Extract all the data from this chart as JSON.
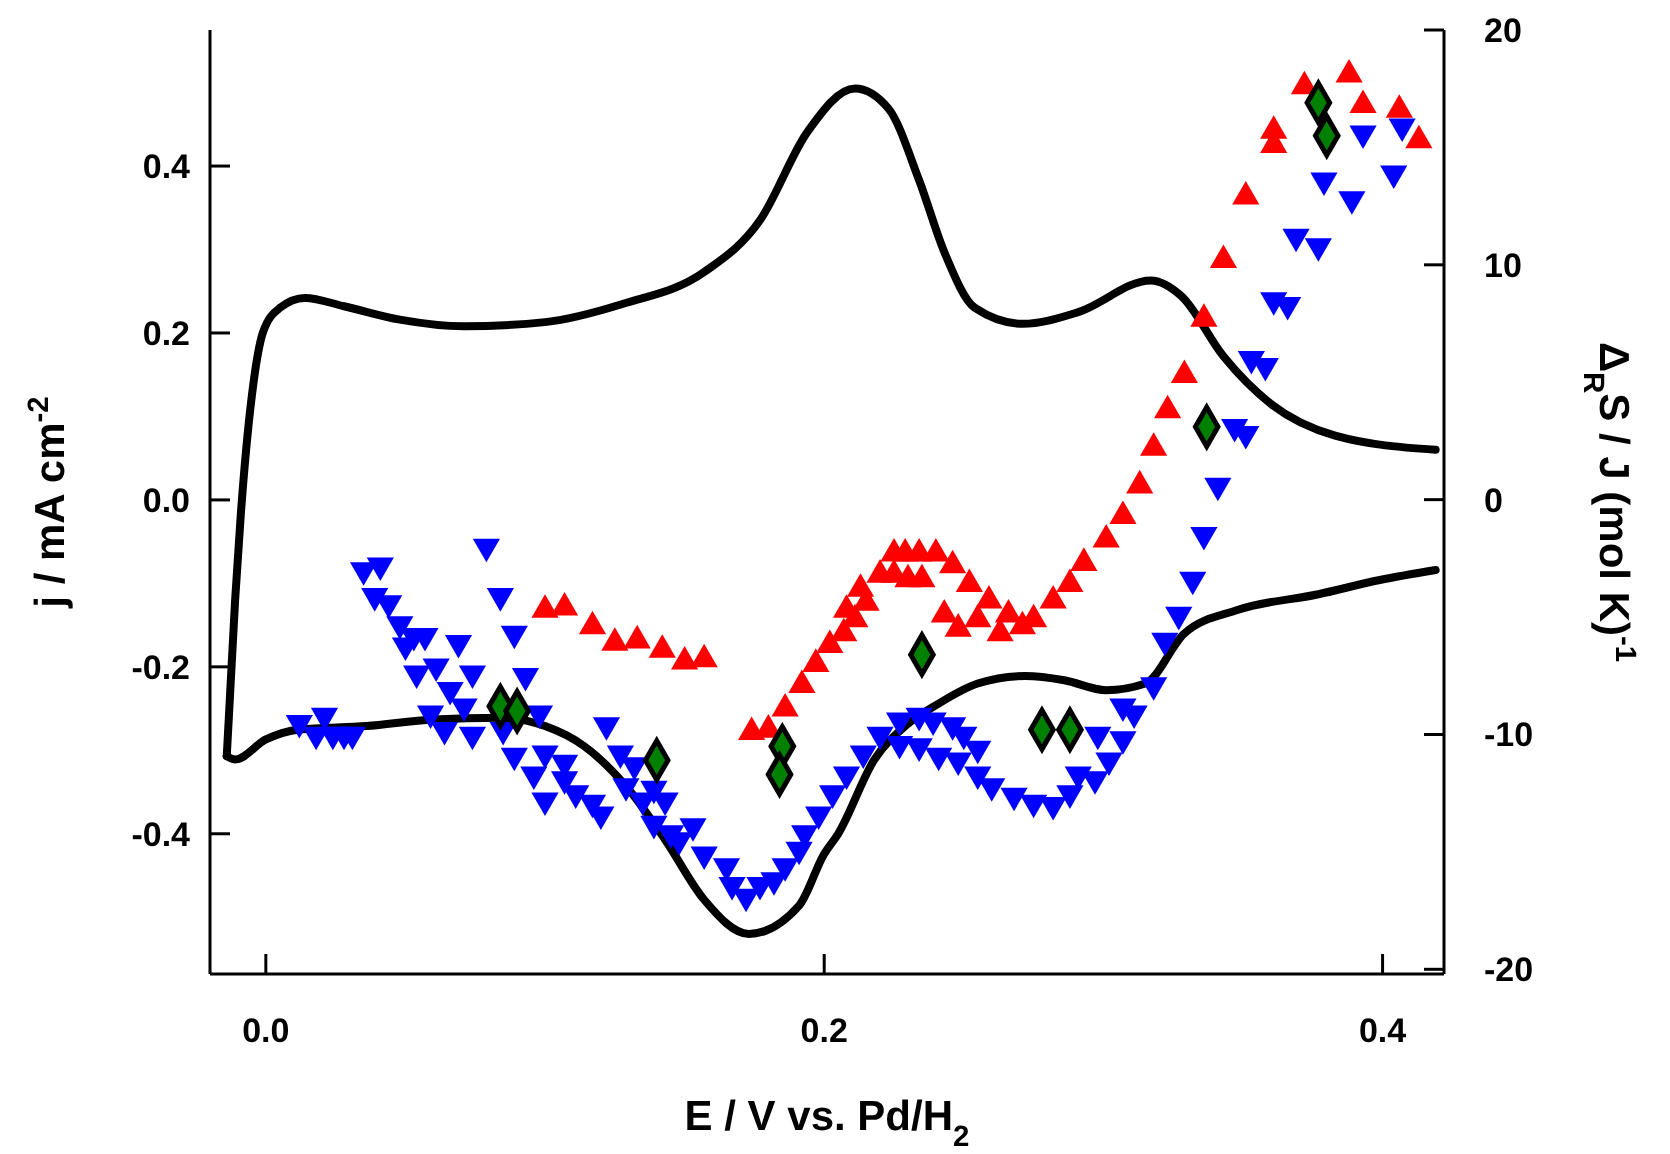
{
  "chart_data": {
    "type": "scatter",
    "xlabel": "E / V vs. Pd/H$_{2}$",
    "ylabel": "j / mA cm$^{-2}$",
    "y2label": "Δ$_{R}$S / J (mol K)$^{-1}$",
    "xlim": [
      -0.02,
      0.422
    ],
    "xticks": [
      {
        "value": 0,
        "label": "0.0"
      },
      {
        "value": 0.2,
        "label": "0.2"
      },
      {
        "value": 0.4,
        "label": "0.4"
      }
    ],
    "ylim": [
      -0.568,
      0.563
    ],
    "yticks": [
      {
        "value": -0.4,
        "label": "-0.4"
      },
      {
        "value": -0.2,
        "label": "-0.2"
      },
      {
        "value": 0,
        "label": "0.0"
      },
      {
        "value": 0.2,
        "label": "0.2"
      },
      {
        "value": 0.4,
        "label": "0.4"
      }
    ],
    "y2lim": [
      -20.2,
      20
    ],
    "y2ticks": [
      -20,
      -10,
      0,
      10,
      20
    ],
    "grid": false,
    "series": [
      {
        "type": "line",
        "color": "#000000",
        "marker": "none",
        "line_style": "solid",
        "x": [
          -0.014,
          -0.011,
          -0.009,
          -0.005,
          -0.001,
          0.005,
          0.014,
          0.028,
          0.048,
          0.071,
          0.1,
          0.128,
          0.157,
          0.177,
          0.194,
          0.211,
          0.223,
          0.234,
          0.243,
          0.254,
          0.271,
          0.291,
          0.317,
          0.328,
          0.343,
          0.36,
          0.383,
          0.419
        ],
        "values": [
          -0.307,
          -0.12,
          -0.019,
          0.125,
          0.201,
          0.23,
          0.242,
          0.232,
          0.216,
          0.208,
          0.213,
          0.235,
          0.273,
          0.335,
          0.441,
          0.493,
          0.469,
          0.383,
          0.297,
          0.23,
          0.211,
          0.225,
          0.263,
          0.244,
          0.172,
          0.115,
          0.077,
          0.06
        ]
      },
      {
        "type": "line",
        "color": "#000000",
        "marker": "none",
        "line_style": "solid",
        "x": [
          -0.014,
          -0.011,
          0,
          0.012,
          0.036,
          0.06,
          0.084,
          0.1,
          0.114,
          0.129,
          0.143,
          0.157,
          0.173,
          0.191,
          0.2,
          0.205,
          0.218,
          0.229,
          0.241,
          0.255,
          0.272,
          0.286,
          0.301,
          0.315,
          0.329,
          0.348,
          0.377,
          0.399,
          0.419
        ],
        "values": [
          -0.307,
          -0.311,
          -0.287,
          -0.275,
          -0.271,
          -0.263,
          -0.261,
          -0.271,
          -0.295,
          -0.343,
          -0.407,
          -0.479,
          -0.52,
          -0.486,
          -0.424,
          -0.4,
          -0.311,
          -0.271,
          -0.244,
          -0.22,
          -0.211,
          -0.216,
          -0.228,
          -0.22,
          -0.16,
          -0.132,
          -0.113,
          -0.096,
          -0.084
        ]
      },
      {
        "axis": "y2",
        "color": "#ff0000",
        "marker": "triangle",
        "x": [
          0.1,
          0.107,
          0.117,
          0.125,
          0.133,
          0.142,
          0.15,
          0.157,
          0.174,
          0.18,
          0.186,
          0.192,
          0.197,
          0.202,
          0.207,
          0.211,
          0.208,
          0.215,
          0.213,
          0.22,
          0.225,
          0.23,
          0.235,
          0.225,
          0.229,
          0.234,
          0.24,
          0.246,
          0.252,
          0.259,
          0.243,
          0.248,
          0.255,
          0.263,
          0.266,
          0.271,
          0.275,
          0.282,
          0.288,
          0.293,
          0.301,
          0.307,
          0.313,
          0.318,
          0.323,
          0.329,
          0.336,
          0.343,
          0.351,
          0.361,
          0.361,
          0.372,
          0.388,
          0.393,
          0.406,
          0.413
        ],
        "values": [
          -4.7,
          -4.6,
          -5.4,
          -6.1,
          -6,
          -6.4,
          -6.9,
          -6.8,
          -9.9,
          -9.8,
          -8.9,
          -7.9,
          -7,
          -6.2,
          -5.7,
          -5.1,
          -4.7,
          -4.4,
          -3.8,
          -3.2,
          -3.2,
          -3.4,
          -3.4,
          -2.3,
          -2.3,
          -2.3,
          -2.3,
          -2.8,
          -3.6,
          -4.3,
          -4.9,
          -5.5,
          -5.1,
          -5.7,
          -4.9,
          -5.4,
          -5.1,
          -4.3,
          -3.6,
          -2.7,
          -1.7,
          -0.7,
          0.6,
          2.2,
          3.8,
          5.3,
          7.7,
          10.2,
          12.9,
          15.1,
          15.7,
          17.6,
          18.1,
          16.8,
          16.6,
          15.3
        ]
      },
      {
        "axis": "y2",
        "color": "#0000ff",
        "marker": "triangle-down",
        "x": [
          0.012,
          0.021,
          0.018,
          0.024,
          0.028,
          0.031,
          0.035,
          0.041,
          0.039,
          0.044,
          0.048,
          0.053,
          0.05,
          0.057,
          0.054,
          0.061,
          0.066,
          0.059,
          0.069,
          0.074,
          0.071,
          0.064,
          0.074,
          0.079,
          0.084,
          0.089,
          0.093,
          0.098,
          0.085,
          0.089,
          0.096,
          0.1,
          0.1,
          0.107,
          0.107,
          0.111,
          0.117,
          0.12,
          0.122,
          0.127,
          0.129,
          0.132,
          0.135,
          0.139,
          0.139,
          0.143,
          0.145,
          0.148,
          0.153,
          0.157,
          0.165,
          0.167,
          0.172,
          0.177,
          0.182,
          0.186,
          0.191,
          0.193,
          0.198,
          0.203,
          0.208,
          0.214,
          0.22,
          0.227,
          0.234,
          0.239,
          0.246,
          0.25,
          0.255,
          0.227,
          0.234,
          0.241,
          0.248,
          0.255,
          0.26,
          0.268,
          0.275,
          0.282,
          0.288,
          0.291,
          0.297,
          0.298,
          0.302,
          0.307,
          0.307,
          0.311,
          0.318,
          0.322,
          0.327,
          0.332,
          0.336,
          0.341,
          0.347,
          0.351,
          0.353,
          0.358,
          0.361,
          0.366,
          0.369,
          0.377,
          0.379,
          0.389,
          0.393,
          0.404,
          0.407
        ],
        "values": [
          -9.5,
          -9.2,
          -10,
          -10,
          -10,
          -10,
          -3,
          -2.8,
          -4.1,
          -4.4,
          -5.3,
          -5.8,
          -6.2,
          -5.8,
          -7.4,
          -7.1,
          -8.1,
          -9.1,
          -6.1,
          -7.4,
          -8.8,
          -9.8,
          -10,
          -2,
          -4.1,
          -5.7,
          -7.5,
          -9.1,
          -9.8,
          -10.9,
          -11.7,
          -12.8,
          -10.8,
          -11.2,
          -11.9,
          -12.5,
          -12.9,
          -13.4,
          -9.6,
          -10.8,
          -12.2,
          -11.3,
          -12.8,
          -12.3,
          -13.8,
          -12.8,
          -14.2,
          -14.5,
          -13.9,
          -15.1,
          -15.6,
          -16.4,
          -16.9,
          -16.4,
          -16.2,
          -15.6,
          -14.9,
          -14.2,
          -13.4,
          -12.5,
          -11.7,
          -10.8,
          -10,
          -9.4,
          -9.2,
          -9.4,
          -9.6,
          -10,
          -10.6,
          -10.4,
          -10.5,
          -10.9,
          -11.1,
          -11.7,
          -12.2,
          -12.6,
          -12.9,
          -13,
          -12.5,
          -11.7,
          -11.9,
          -10,
          -11.1,
          -10.2,
          -8.8,
          -9.1,
          -7.9,
          -6,
          -4.9,
          -3.4,
          -1.5,
          0.6,
          3.1,
          2.8,
          6,
          5.7,
          8.5,
          8.3,
          11.2,
          10.8,
          13.6,
          12.8,
          15.6,
          13.9,
          15.9
        ]
      },
      {
        "axis": "y2",
        "color": "#008000",
        "marker": "diamond",
        "x": [
          0.084,
          0.09,
          0.14,
          0.185,
          0.184,
          0.235,
          0.278,
          0.288,
          0.337,
          0.377,
          0.38
        ],
        "values": [
          -8.8,
          -9,
          -11.1,
          -10.5,
          -11.7,
          -6.6,
          -9.8,
          -9.8,
          3.1,
          16.9,
          15.5
        ]
      }
    ]
  }
}
